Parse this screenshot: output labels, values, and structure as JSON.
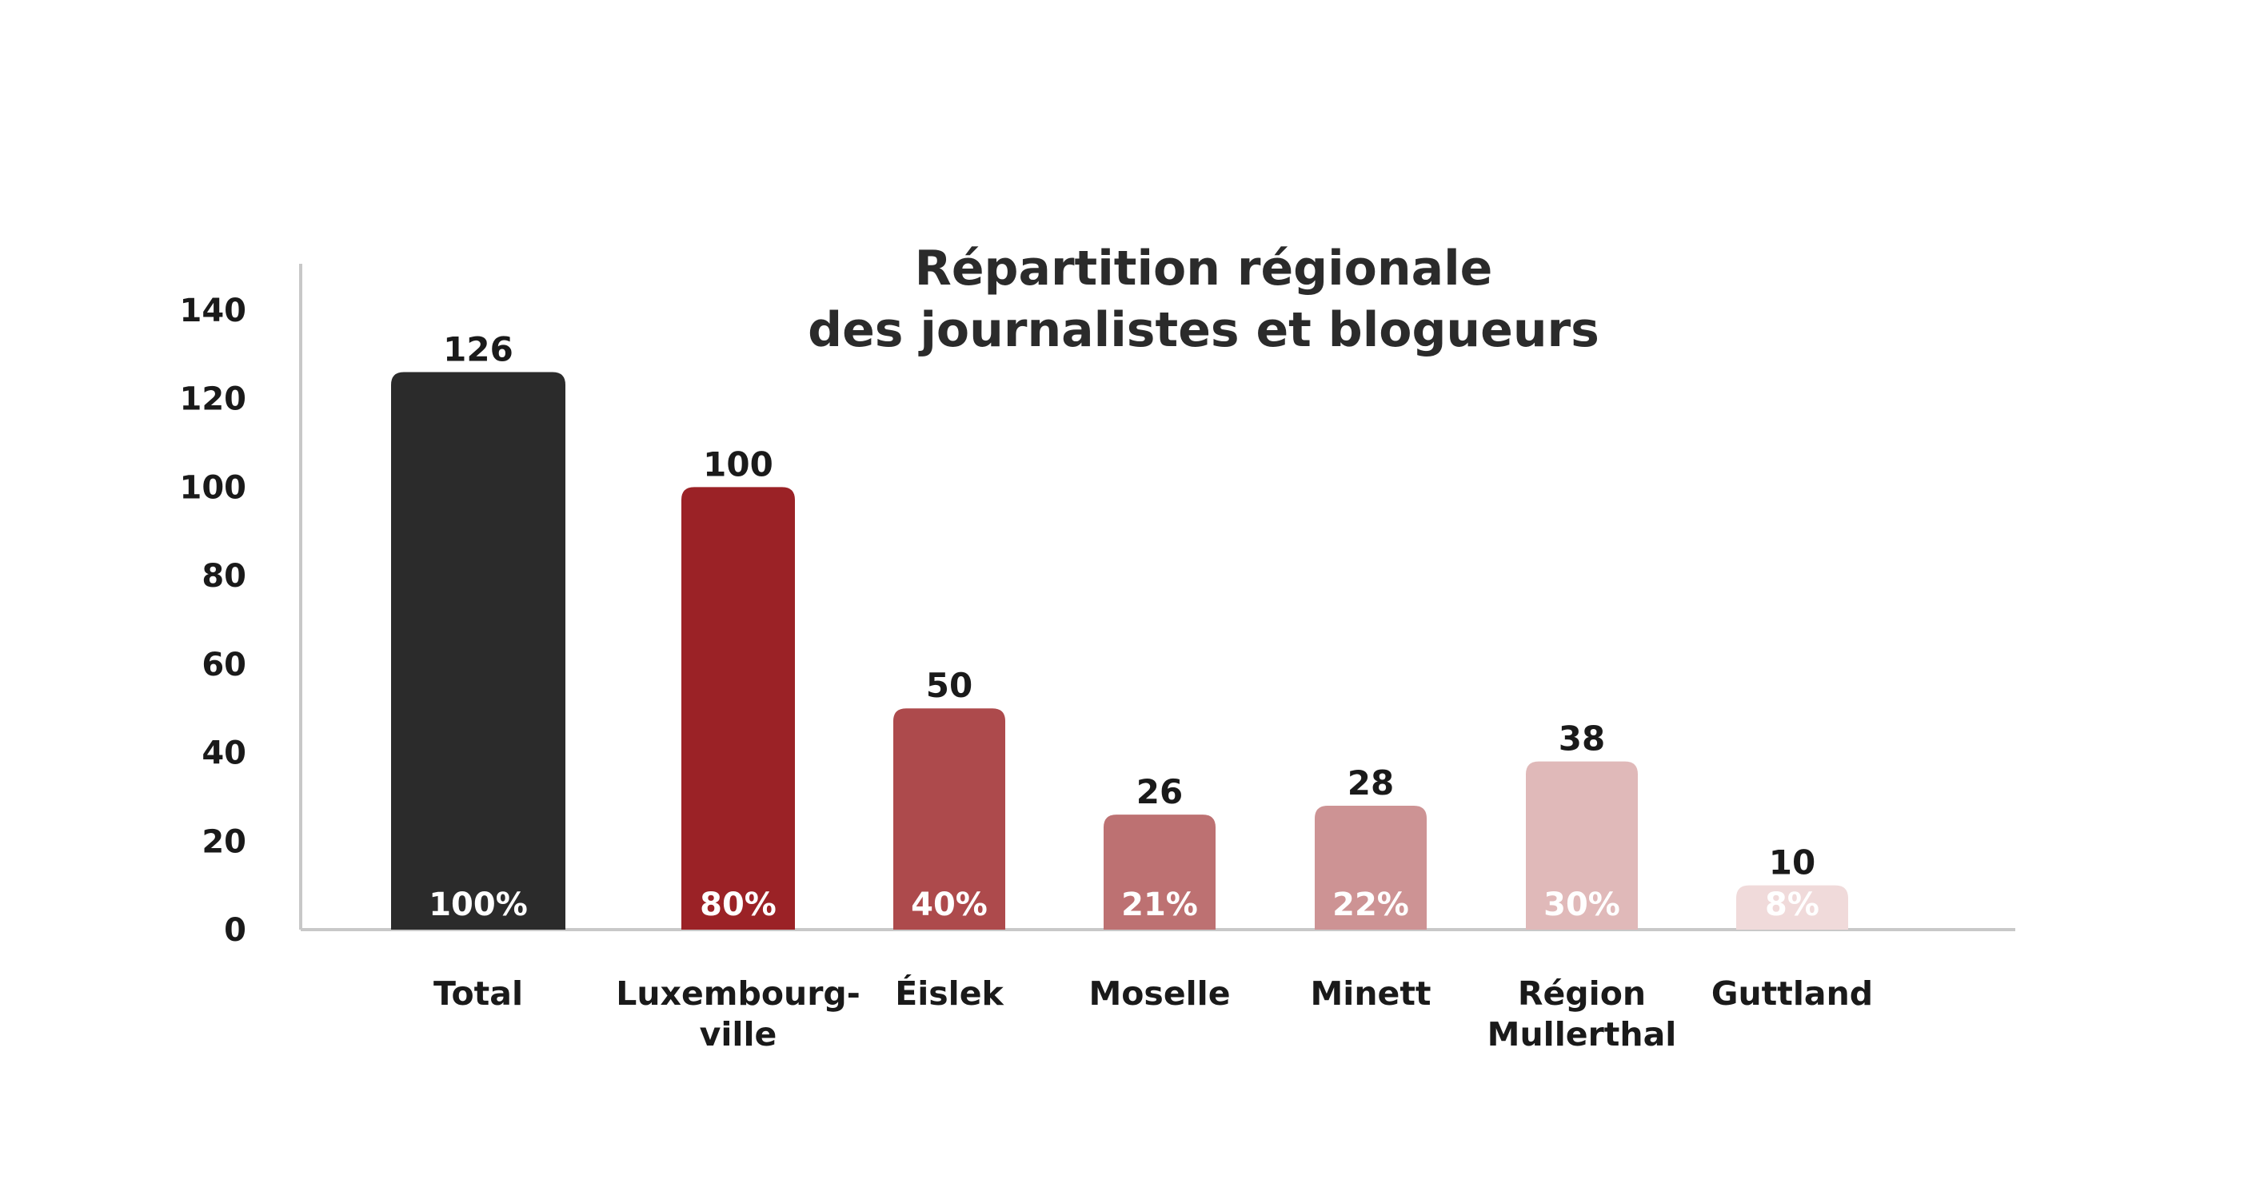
{
  "chart_data": {
    "type": "bar",
    "title": [
      "Répartition régionale",
      "des journalistes et blogueurs"
    ],
    "xlabel": "",
    "ylabel": "",
    "ylim": [
      0,
      140
    ],
    "yticks": [
      "0",
      "20",
      "40",
      "60",
      "80",
      "100",
      "120",
      "140"
    ],
    "grid": false,
    "legend": false,
    "categories": [
      [
        "Total"
      ],
      [
        "Luxembourg-",
        "ville"
      ],
      [
        "Éislek"
      ],
      [
        "Moselle"
      ],
      [
        "Minett"
      ],
      [
        "Région",
        "Mullerthal"
      ],
      [
        "Guttland"
      ]
    ],
    "values": [
      126,
      100,
      50,
      26,
      28,
      38,
      10
    ],
    "value_labels": [
      "126",
      "100",
      "50",
      "26",
      "28",
      "38",
      "10"
    ],
    "percent_labels": [
      "100%",
      "80%",
      "40%",
      "21%",
      "22%",
      "30%",
      "8%"
    ],
    "colors": [
      "#2b2b2b",
      "#9b2226",
      "#ad4a4c",
      "#bd7172",
      "#cd9394",
      "#e0b9b9",
      "#f0dada"
    ],
    "axis_color": "#c8c8c8"
  }
}
